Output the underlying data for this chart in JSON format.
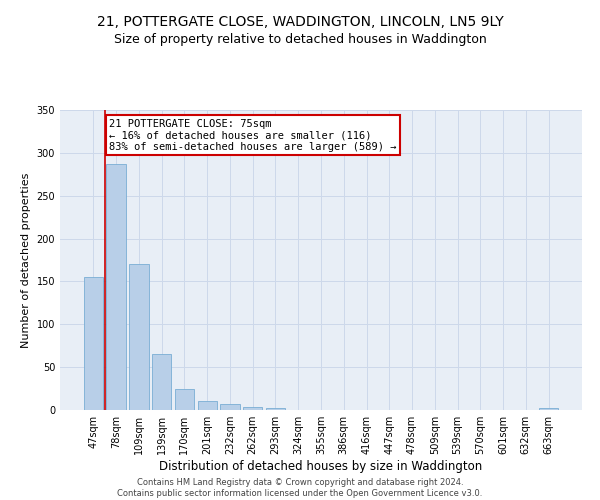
{
  "title1": "21, POTTERGATE CLOSE, WADDINGTON, LINCOLN, LN5 9LY",
  "title2": "Size of property relative to detached houses in Waddington",
  "xlabel": "Distribution of detached houses by size in Waddington",
  "ylabel": "Number of detached properties",
  "footer1": "Contains HM Land Registry data © Crown copyright and database right 2024.",
  "footer2": "Contains public sector information licensed under the Open Government Licence v3.0.",
  "annotation_line1": "21 POTTERGATE CLOSE: 75sqm",
  "annotation_line2": "← 16% of detached houses are smaller (116)",
  "annotation_line3": "83% of semi-detached houses are larger (589) →",
  "bar_color": "#b8cfe8",
  "bar_edge_color": "#7aadd4",
  "red_line_color": "#cc0000",
  "annotation_box_color": "#cc0000",
  "categories": [
    "47sqm",
    "78sqm",
    "109sqm",
    "139sqm",
    "170sqm",
    "201sqm",
    "232sqm",
    "262sqm",
    "293sqm",
    "324sqm",
    "355sqm",
    "386sqm",
    "416sqm",
    "447sqm",
    "478sqm",
    "509sqm",
    "539sqm",
    "570sqm",
    "601sqm",
    "632sqm",
    "663sqm"
  ],
  "values": [
    155,
    287,
    170,
    65,
    25,
    10,
    7,
    4,
    2,
    0,
    0,
    0,
    0,
    0,
    0,
    0,
    0,
    0,
    0,
    0,
    2
  ],
  "ylim": [
    0,
    350
  ],
  "yticks": [
    0,
    50,
    100,
    150,
    200,
    250,
    300,
    350
  ],
  "grid_color": "#cdd8ea",
  "bg_color": "#e8eef6",
  "fig_bg_color": "#ffffff",
  "title1_fontsize": 10,
  "title2_fontsize": 9,
  "xlabel_fontsize": 8.5,
  "ylabel_fontsize": 8,
  "tick_fontsize": 7,
  "footer_fontsize": 6,
  "annotation_fontsize": 7.5
}
